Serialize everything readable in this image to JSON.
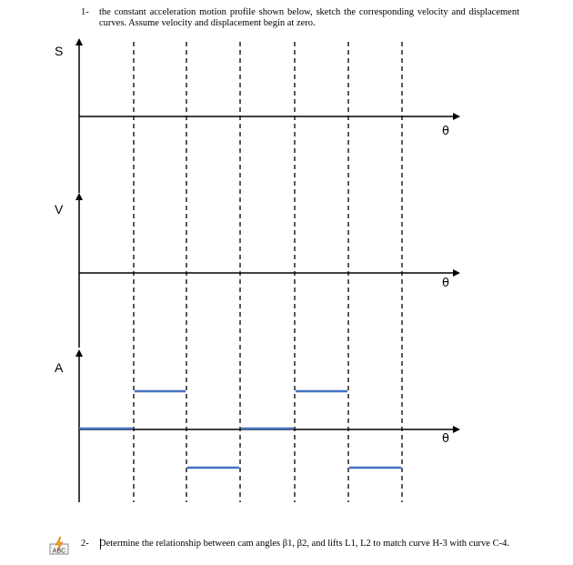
{
  "question1": {
    "number": "1-",
    "text": "the constant acceleration motion profile shown below, sketch the corresponding velocity and displacement curves. Assume velocity and displacement begin at zero."
  },
  "graphs": {
    "s": {
      "label": "S",
      "x_label": "θ"
    },
    "v": {
      "label": "V",
      "x_label": "θ"
    },
    "a": {
      "label": "A",
      "x_label": "θ"
    }
  },
  "acceleration_profile": {
    "segment_levels": [
      0,
      1,
      -1,
      0,
      1,
      -1
    ],
    "line_color": "#4472c4"
  },
  "question2": {
    "number": "2-",
    "text": "Determine the relationship between cam angles β1, β2, and lifts L1, L2 to match curve H-3 with curve C-4."
  },
  "icon": {
    "name": "spellcheck-icon",
    "text": "ABC"
  }
}
